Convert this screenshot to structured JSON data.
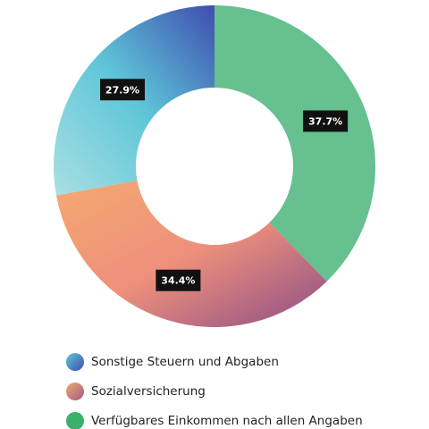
{
  "chart_data": {
    "type": "pie",
    "variant": "donut",
    "series": [
      {
        "name": "Sonstige Steuern und Abgaben",
        "value": 27.9,
        "label": "27.9%",
        "colors": [
          "#3f4db0",
          "#5ec6d8",
          "#a9dfe3"
        ]
      },
      {
        "name": "Sozialversicherung",
        "value": 34.4,
        "label": "34.4%",
        "colors": [
          "#f4a970",
          "#ee8f7c",
          "#8a4e86"
        ]
      },
      {
        "name": "Verfügbares Einkommen nach allen Angaben",
        "value": 37.7,
        "label": "37.7%",
        "colors": [
          "#66c08f",
          "#66c08f"
        ]
      }
    ],
    "legend_position": "bottom",
    "label_style": "dark-box",
    "label_background": "#111111"
  },
  "legend": {
    "items": [
      {
        "label": "Sonstige Steuern und Abgaben",
        "swatch": "linear-gradient(135deg, #5ec6d8, #3f4db0)"
      },
      {
        "label": "Sozialversicherung",
        "swatch": "linear-gradient(135deg, #f4a970, #a05a8a)"
      },
      {
        "label": "Verfügbares Einkommen nach allen Angaben",
        "swatch": "#3bb06a"
      }
    ]
  }
}
